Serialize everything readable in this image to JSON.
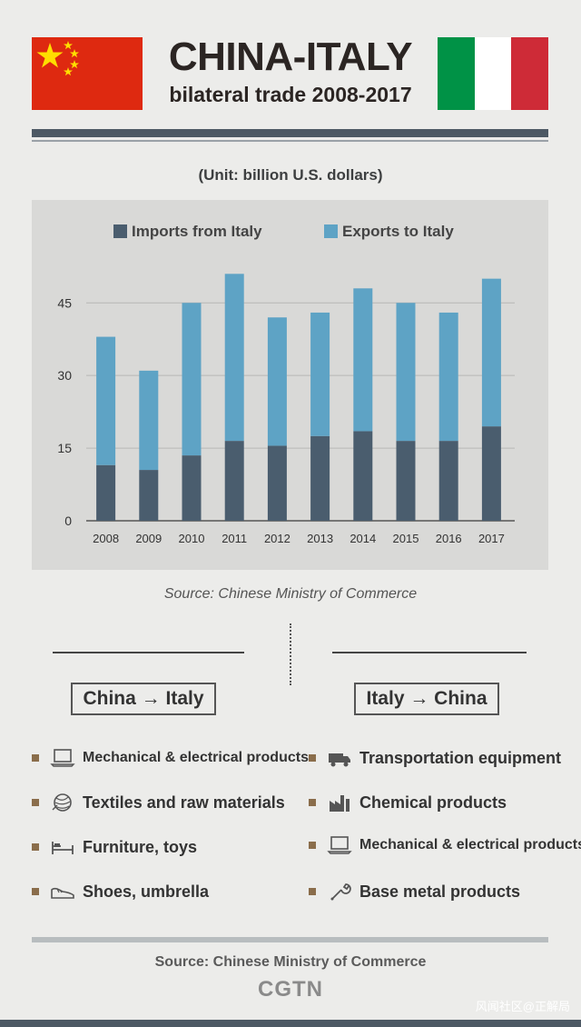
{
  "header": {
    "title": "CHINA-ITALY",
    "subtitle": "bilateral trade 2008-2017",
    "unit": "(Unit: billion U.S. dollars)",
    "flag_colors": {
      "china_red": "#de2910",
      "china_star": "#ffde00",
      "italy_green": "#009246",
      "italy_white": "#ffffff",
      "italy_red": "#ce2b37"
    }
  },
  "chart_data": {
    "type": "bar",
    "stacked": true,
    "categories": [
      "2008",
      "2009",
      "2010",
      "2011",
      "2012",
      "2013",
      "2014",
      "2015",
      "2016",
      "2017"
    ],
    "series": [
      {
        "name": "Imports from Italy",
        "color": "#4a5d6e",
        "values": [
          11.5,
          10.5,
          13.5,
          16.5,
          15.5,
          17.5,
          18.5,
          16.5,
          16.5,
          19.5
        ]
      },
      {
        "name": "Exports to Italy",
        "color": "#5ea3c5",
        "values": [
          26.5,
          20.5,
          31.5,
          34.5,
          26.5,
          25.5,
          29.5,
          28.5,
          26.5,
          30.5
        ]
      }
    ],
    "yticks": [
      "0",
      "15",
      "30",
      "45"
    ],
    "ylim": [
      0,
      55
    ],
    "grid": true,
    "legend_position": "top",
    "title": "",
    "xlabel": "",
    "ylabel": ""
  },
  "sources": {
    "chart_source": "Source: Chinese Ministry of Commerce",
    "footer_source": "Source: Chinese Ministry of Commerce",
    "brand": "CGTN",
    "watermark": "风闻社区@正解局"
  },
  "trade": {
    "china_to_italy": {
      "label": "China → Italy",
      "items": [
        {
          "text": "Mechanical & electrical products",
          "icon": "laptop-icon"
        },
        {
          "text": "Textiles and raw materials",
          "icon": "yarn-ball-icon"
        },
        {
          "text": "Furniture, toys",
          "icon": "bed-icon"
        },
        {
          "text": "Shoes, umbrella",
          "icon": "shoe-icon"
        }
      ]
    },
    "italy_to_china": {
      "label": "Italy → China",
      "items": [
        {
          "text": "Transportation equipment",
          "icon": "truck-icon"
        },
        {
          "text": "Chemical products",
          "icon": "factory-icon"
        },
        {
          "text": "Mechanical & electrical products",
          "icon": "laptop-icon"
        },
        {
          "text": "Base metal products",
          "icon": "wrench-icon"
        }
      ]
    }
  }
}
